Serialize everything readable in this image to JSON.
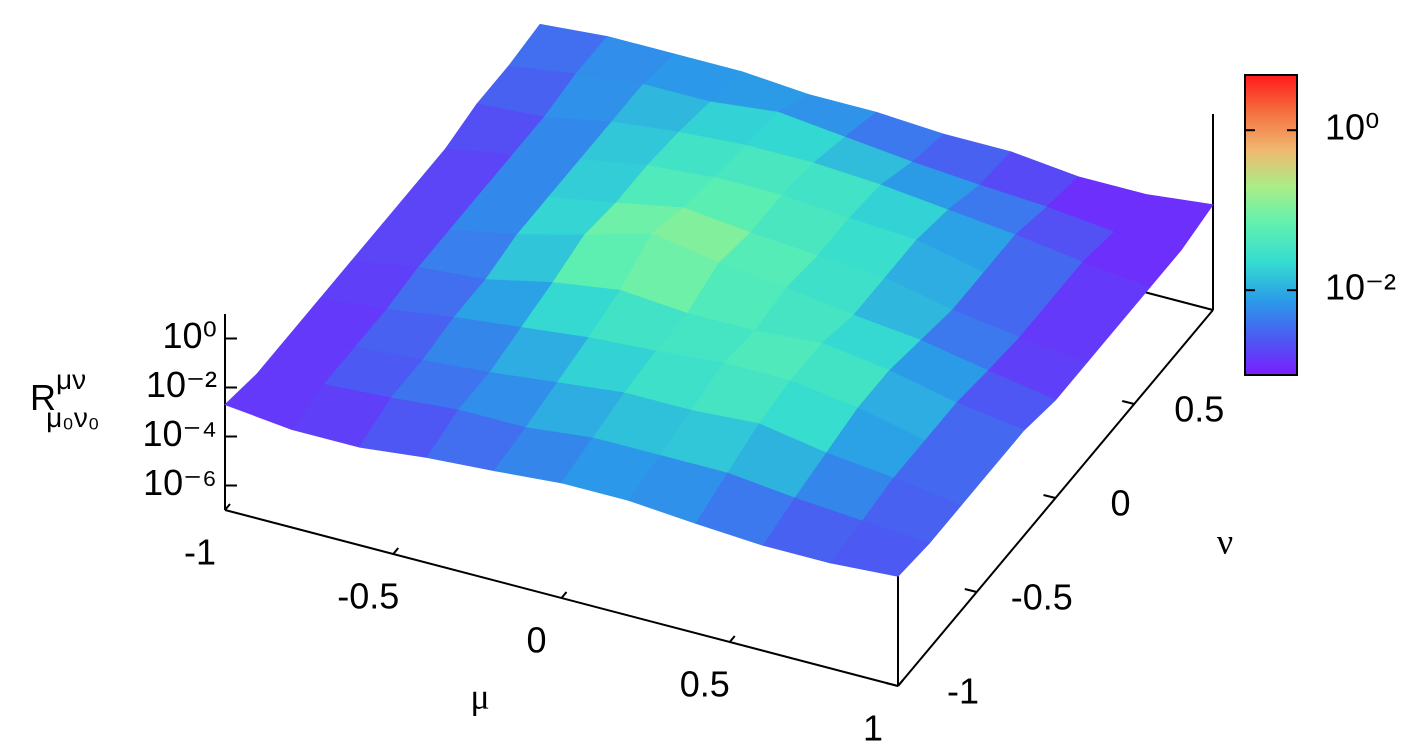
{
  "chart_data": {
    "type": "surface",
    "x_label": "μ",
    "y_label": "ν",
    "z_label": {
      "text": "R",
      "sup": "μν",
      "sub": "μ₀ν₀"
    },
    "x": [
      -1,
      -0.8,
      -0.6,
      -0.4,
      -0.2,
      0,
      0.2,
      0.4,
      0.6,
      0.8,
      1
    ],
    "y": [
      -1,
      -0.8,
      -0.6,
      -0.4,
      -0.2,
      0,
      0.2,
      0.4,
      0.6,
      0.8,
      1
    ],
    "z": [
      [
        0.002,
        0.001,
        0.001,
        0.002,
        0.003,
        0.005,
        0.005,
        0.003,
        0.002,
        0.002,
        0.003
      ],
      [
        0.001,
        0.002,
        0.003,
        0.005,
        0.005,
        0.01,
        0.01,
        0.01,
        0.005,
        0.003,
        0.002
      ],
      [
        0.001,
        0.002,
        0.003,
        0.005,
        0.01,
        0.02,
        0.02,
        0.03,
        0.01,
        0.005,
        0.002
      ],
      [
        0.001,
        0.002,
        0.005,
        0.01,
        0.02,
        0.03,
        0.05,
        0.05,
        0.02,
        0.005,
        0.002
      ],
      [
        0.001,
        0.003,
        0.005,
        0.02,
        0.05,
        0.03,
        0.03,
        0.05,
        0.02,
        0.005,
        0.002
      ],
      [
        0.001,
        0.003,
        0.01,
        0.05,
        0.3,
        0.1,
        0.05,
        0.02,
        0.01,
        0.003,
        0.001
      ],
      [
        0.001,
        0.003,
        0.01,
        0.03,
        0.1,
        0.05,
        0.03,
        0.02,
        0.005,
        0.002,
        0.001
      ],
      [
        0.001,
        0.003,
        0.01,
        0.03,
        0.05,
        0.05,
        0.03,
        0.02,
        0.005,
        0.002,
        0.001
      ],
      [
        0.002,
        0.003,
        0.01,
        0.02,
        0.03,
        0.03,
        0.02,
        0.01,
        0.005,
        0.002,
        0.001
      ],
      [
        0.002,
        0.005,
        0.01,
        0.01,
        0.02,
        0.01,
        0.005,
        0.003,
        0.002,
        0.001,
        0.001
      ],
      [
        0.003,
        0.005,
        0.005,
        0.005,
        0.003,
        0.003,
        0.002,
        0.002,
        0.001,
        0.001,
        0.002
      ]
    ],
    "xlim": [
      -1,
      1
    ],
    "ylim": [
      -1,
      1
    ],
    "zlim": [
      1e-07,
      10
    ],
    "zlog": true,
    "xticks": [
      -1,
      -0.5,
      0,
      0.5,
      1
    ],
    "yticks": [
      -1,
      -0.5,
      0,
      0.5
    ],
    "zticks": [
      {
        "value": 1,
        "label": "10⁰"
      },
      {
        "value": 0.01,
        "label": "10⁻²"
      },
      {
        "value": 0.0001,
        "label": "10⁻⁴"
      },
      {
        "value": 1e-06,
        "label": "10⁻⁶"
      }
    ],
    "colorbar": {
      "lim": [
        0.00087,
        4.9
      ],
      "ticks": [
        {
          "value": 1,
          "label": "10⁰"
        },
        {
          "value": 0.01,
          "label": "10⁻²"
        }
      ],
      "colors": [
        "#7b1cff",
        "#4a5cf2",
        "#2a9ce8",
        "#35dcd0",
        "#5ef0b0",
        "#a8ee88",
        "#f0b870",
        "#f57040",
        "#ff1a1a"
      ]
    }
  }
}
